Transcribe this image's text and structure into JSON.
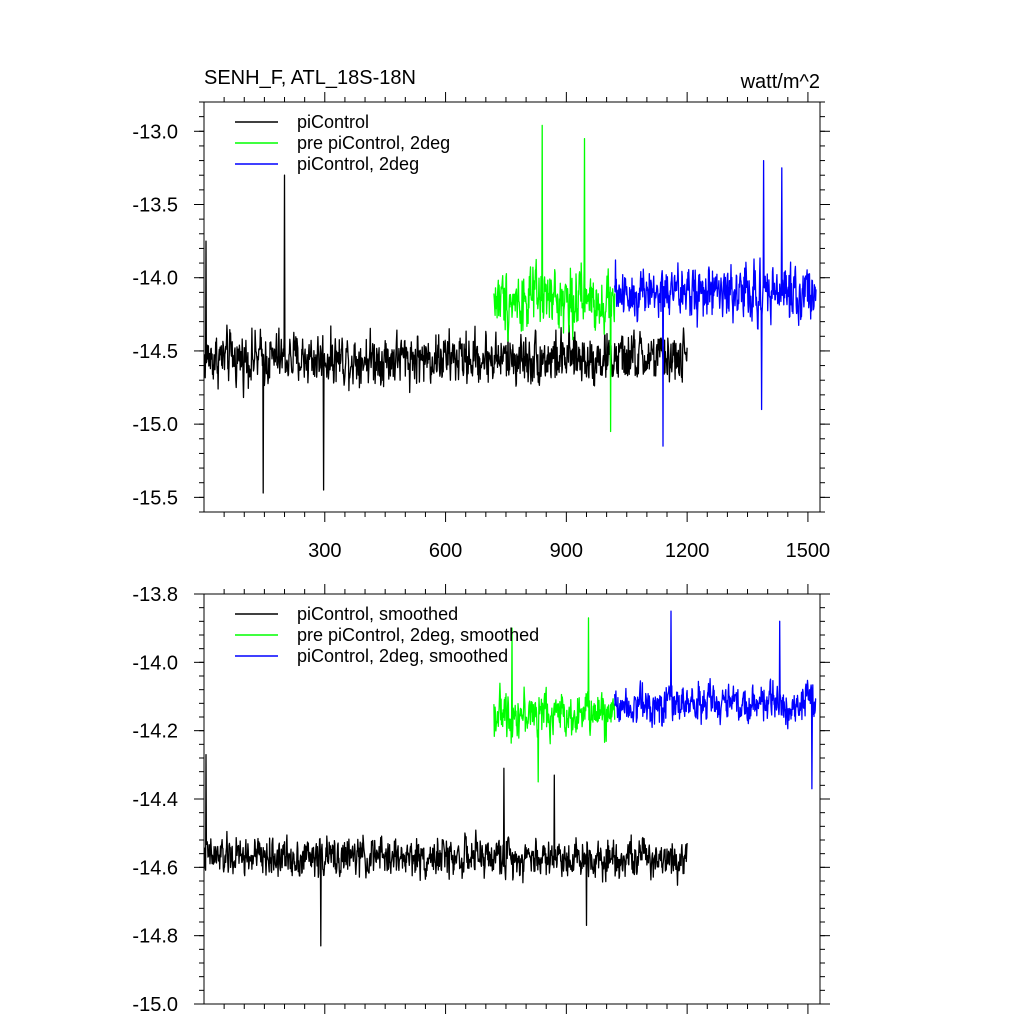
{
  "chart_data": [
    {
      "type": "line",
      "title": "SENH_F, ATL_18S-18N",
      "units": "watt/m^2",
      "xlim": [
        0,
        1530
      ],
      "ylim": [
        -15.6,
        -12.8
      ],
      "xticks": [
        300,
        600,
        900,
        1200,
        1500
      ],
      "yticks": [
        -13.0,
        -13.5,
        -14.0,
        -14.5,
        -15.0,
        -15.5
      ],
      "ytick_labels": [
        "-13.0",
        "-13.5",
        "-14.0",
        "-14.5",
        "-15.0",
        "-15.5"
      ],
      "legend_position": "top-left",
      "series": [
        {
          "name": "piControl",
          "color": "#000000",
          "x_start": 1,
          "x_end": 1200,
          "mean": -14.55,
          "noise_amp": 0.22,
          "peaks": [
            [
              5,
              -13.75
            ],
            [
              200,
              -13.3
            ],
            [
              147,
              -15.47
            ],
            [
              297,
              -15.45
            ]
          ]
        },
        {
          "name": "pre piControl, 2deg",
          "color": "#00ff00",
          "x_start": 720,
          "x_end": 1020,
          "mean": -14.15,
          "noise_amp": 0.26,
          "peaks": [
            [
              840,
              -12.96
            ],
            [
              945,
              -13.05
            ],
            [
              1010,
              -15.05
            ]
          ]
        },
        {
          "name": "piControl, 2deg",
          "color": "#0000ff",
          "x_start": 1020,
          "x_end": 1520,
          "mean": -14.1,
          "noise_amp": 0.24,
          "peaks": [
            [
              1390,
              -13.2
            ],
            [
              1435,
              -13.25
            ],
            [
              1140,
              -15.15
            ],
            [
              1385,
              -14.9
            ]
          ]
        }
      ]
    },
    {
      "type": "line",
      "title": "",
      "xlim": [
        0,
        1530
      ],
      "ylim": [
        -15.0,
        -13.8
      ],
      "xticks": [
        300,
        600,
        900,
        1200,
        1500
      ],
      "yticks": [
        -13.8,
        -14.0,
        -14.2,
        -14.4,
        -14.6,
        -14.8,
        -15.0
      ],
      "ytick_labels": [
        "-13.8",
        "-14.0",
        "-14.2",
        "-14.4",
        "-14.6",
        "-14.8",
        "-15.0"
      ],
      "legend_position": "top-left",
      "series": [
        {
          "name": "piControl, smoothed",
          "color": "#000000",
          "x_start": 1,
          "x_end": 1200,
          "mean": -14.57,
          "noise_amp": 0.07,
          "peaks": [
            [
              5,
              -14.27
            ],
            [
              745,
              -14.31
            ],
            [
              870,
              -14.33
            ],
            [
              290,
              -14.83
            ],
            [
              950,
              -14.77
            ]
          ]
        },
        {
          "name": "pre piControl, 2deg, smoothed",
          "color": "#00ff00",
          "x_start": 720,
          "x_end": 1020,
          "mean": -14.15,
          "noise_amp": 0.08,
          "peaks": [
            [
              765,
              -13.9
            ],
            [
              955,
              -13.87
            ],
            [
              830,
              -14.35
            ]
          ]
        },
        {
          "name": "piControl, 2deg, smoothed",
          "color": "#0000ff",
          "x_start": 1020,
          "x_end": 1520,
          "mean": -14.12,
          "noise_amp": 0.07,
          "peaks": [
            [
              1160,
              -13.85
            ],
            [
              1430,
              -13.88
            ],
            [
              1510,
              -14.37
            ]
          ]
        }
      ]
    }
  ]
}
